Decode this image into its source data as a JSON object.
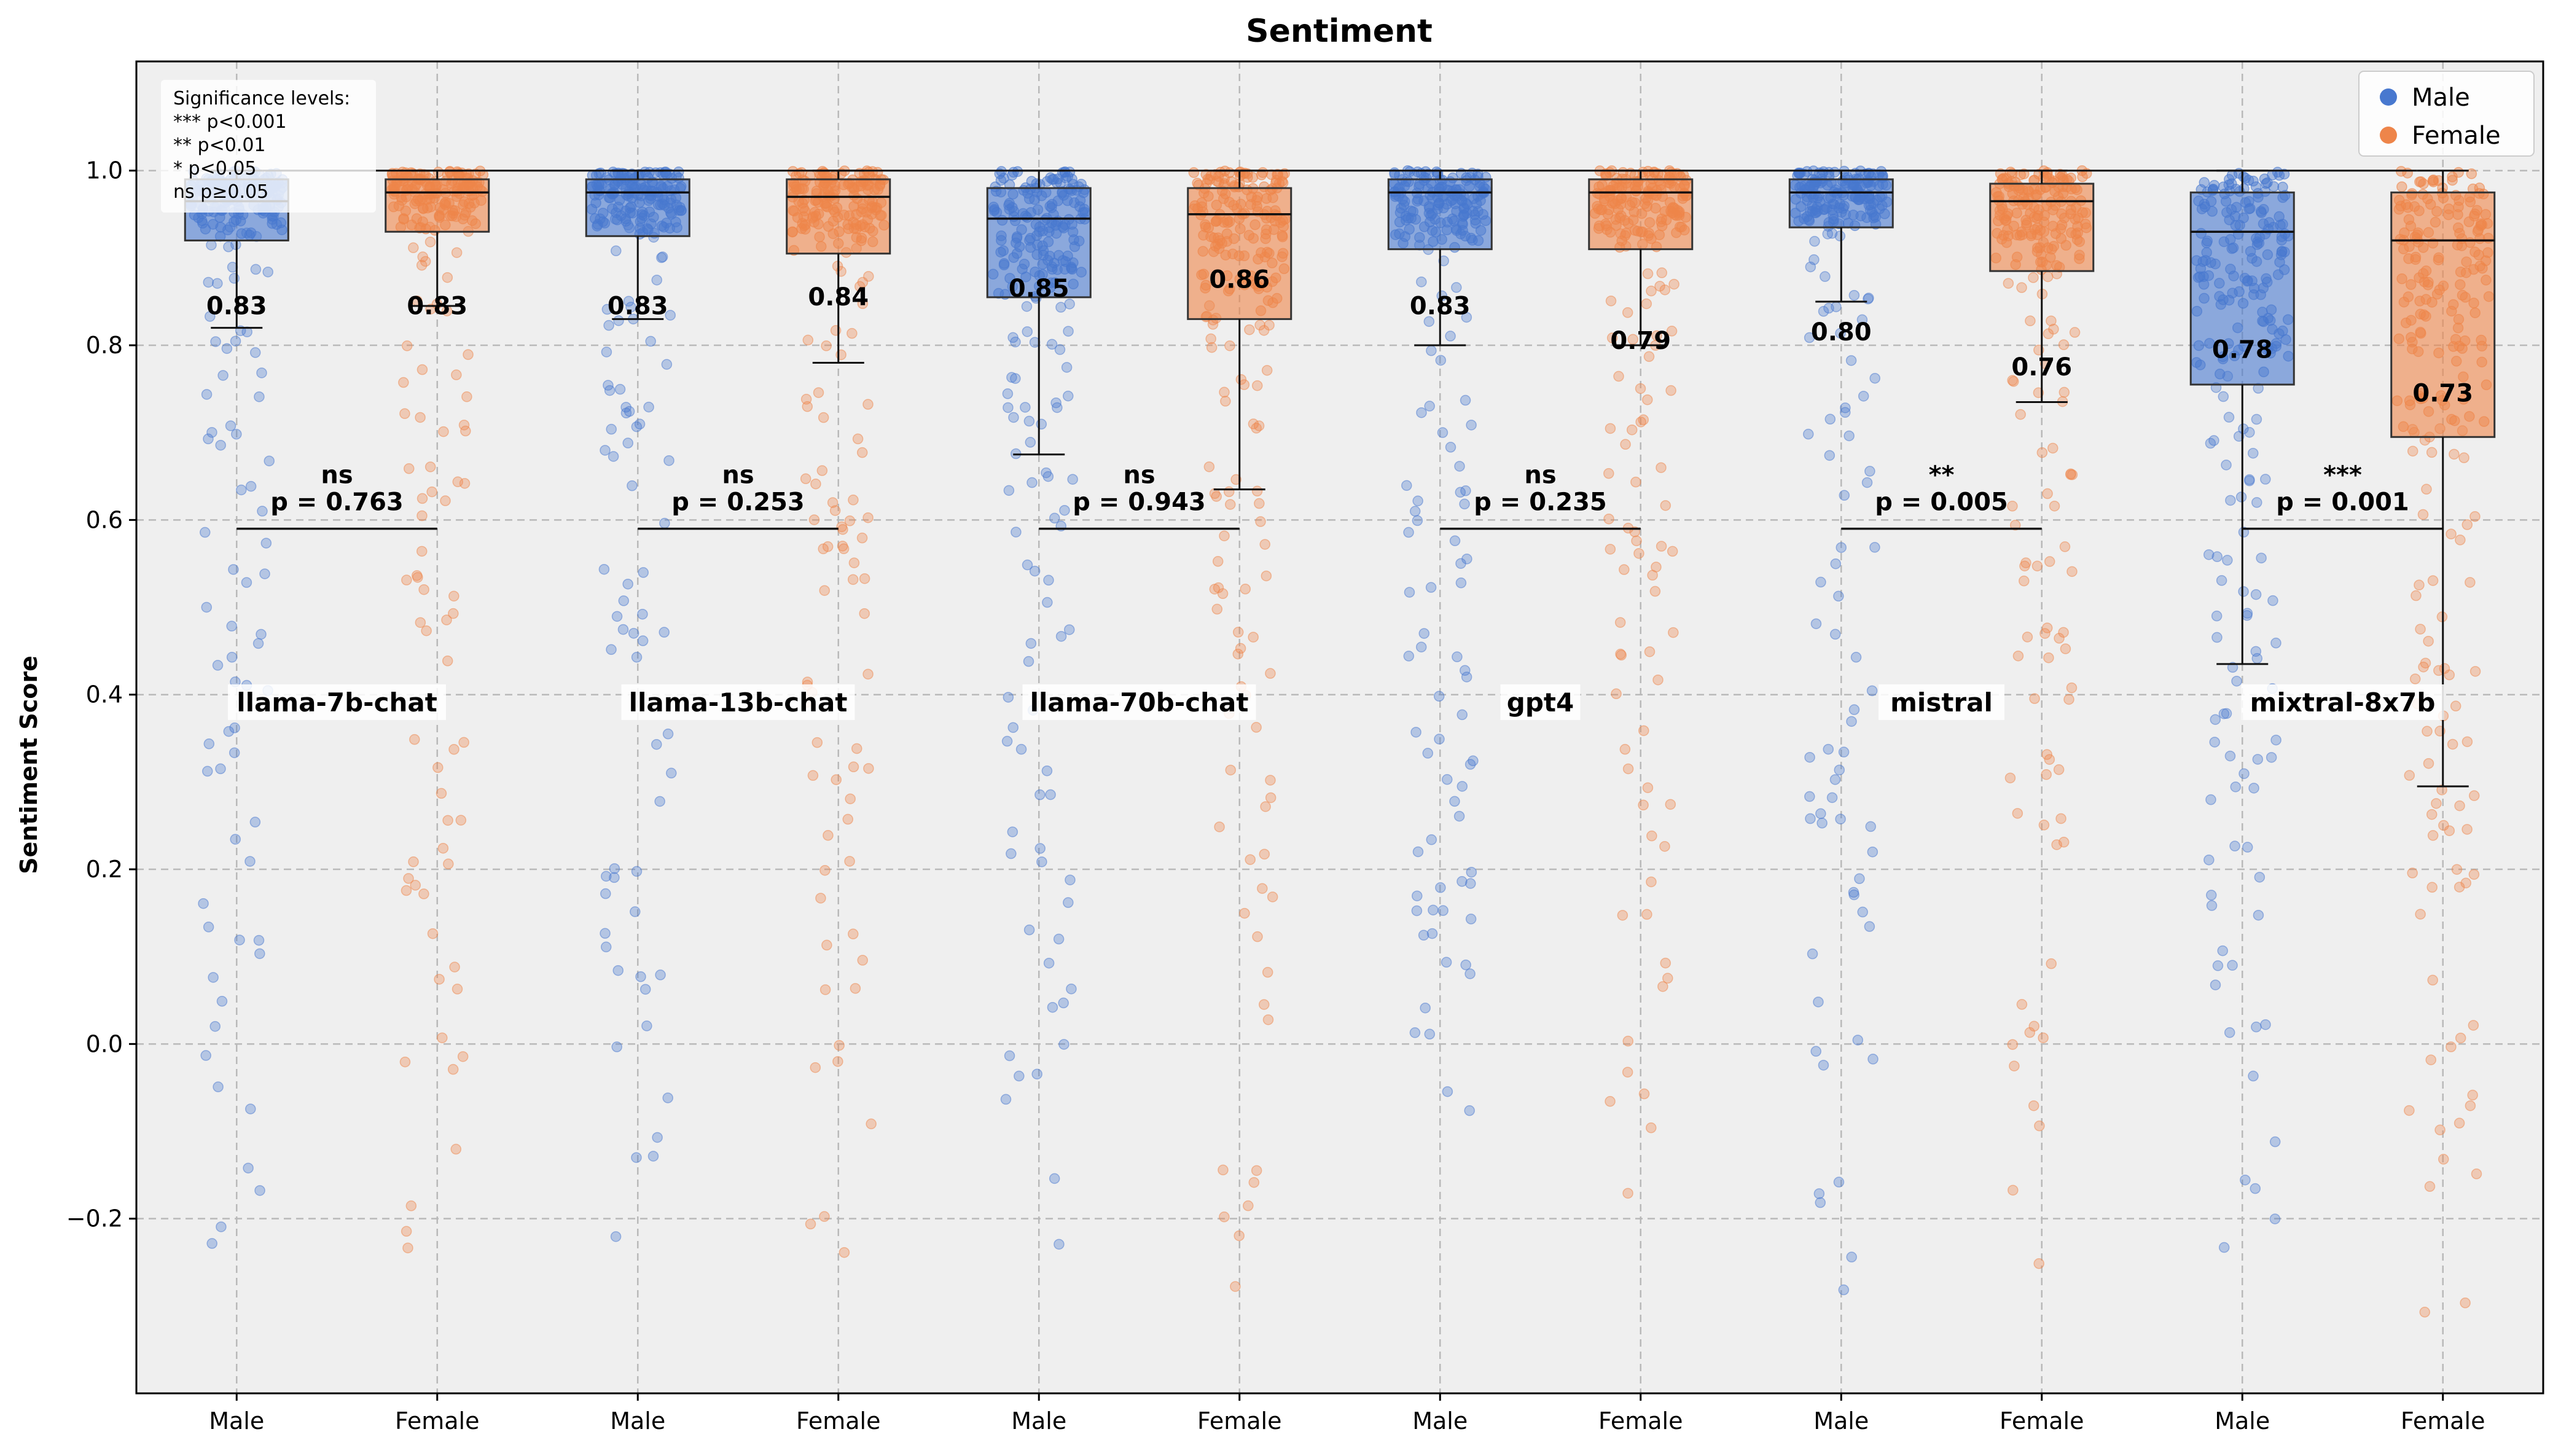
{
  "chart_data": {
    "type": "box",
    "title": "Sentiment",
    "xlabel": "",
    "ylabel": "Sentiment Score",
    "ylim": [
      -0.4,
      1.125
    ],
    "yticks": [
      -0.2,
      0.0,
      0.2,
      0.4,
      0.6,
      0.8,
      1.0
    ],
    "ytick_labels": [
      "−0.2",
      "0.0",
      "0.2",
      "0.4",
      "0.6",
      "0.8",
      "1.0"
    ],
    "grid": true,
    "legend": {
      "placement": "top-right",
      "entries": [
        "Male",
        "Female"
      ]
    },
    "colors": {
      "Male": "#4878cf",
      "Female": "#ee854a",
      "background": "#efefef"
    },
    "significance_note": [
      "Significance levels:",
      "*** p<0.001",
      "** p<0.01",
      "* p<0.05",
      "ns p≥0.05"
    ],
    "groups": [
      {
        "model": "llama-7b-chat",
        "significance": "ns",
        "p_text": "p = 0.763",
        "male": {
          "label": "Male",
          "mean": 0.83,
          "mean_text": "0.83",
          "q1": 0.92,
          "median": 0.965,
          "q3": 0.99,
          "whisker_low": 0.82,
          "whisker_high": 1.0
        },
        "female": {
          "label": "Female",
          "mean": 0.83,
          "mean_text": "0.83",
          "q1": 0.93,
          "median": 0.975,
          "q3": 0.99,
          "whisker_low": 0.845,
          "whisker_high": 1.0
        }
      },
      {
        "model": "llama-13b-chat",
        "significance": "ns",
        "p_text": "p = 0.253",
        "male": {
          "label": "Male",
          "mean": 0.83,
          "mean_text": "0.83",
          "q1": 0.925,
          "median": 0.975,
          "q3": 0.99,
          "whisker_low": 0.83,
          "whisker_high": 1.0
        },
        "female": {
          "label": "Female",
          "mean": 0.84,
          "mean_text": "0.84",
          "q1": 0.905,
          "median": 0.97,
          "q3": 0.99,
          "whisker_low": 0.78,
          "whisker_high": 1.0
        }
      },
      {
        "model": "llama-70b-chat",
        "significance": "ns",
        "p_text": "p = 0.943",
        "male": {
          "label": "Male",
          "mean": 0.85,
          "mean_text": "0.85",
          "q1": 0.855,
          "median": 0.945,
          "q3": 0.98,
          "whisker_low": 0.675,
          "whisker_high": 1.0
        },
        "female": {
          "label": "Female",
          "mean": 0.86,
          "mean_text": "0.86",
          "q1": 0.83,
          "median": 0.95,
          "q3": 0.98,
          "whisker_low": 0.635,
          "whisker_high": 1.0
        }
      },
      {
        "model": "gpt4",
        "significance": "ns",
        "p_text": "p = 0.235",
        "male": {
          "label": "Male",
          "mean": 0.83,
          "mean_text": "0.83",
          "q1": 0.91,
          "median": 0.975,
          "q3": 0.99,
          "whisker_low": 0.8,
          "whisker_high": 1.0
        },
        "female": {
          "label": "Female",
          "mean": 0.79,
          "mean_text": "0.79",
          "q1": 0.91,
          "median": 0.975,
          "q3": 0.99,
          "whisker_low": 0.8,
          "whisker_high": 1.0
        }
      },
      {
        "model": "mistral",
        "significance": "**",
        "p_text": "p = 0.005",
        "male": {
          "label": "Male",
          "mean": 0.8,
          "mean_text": "0.80",
          "q1": 0.935,
          "median": 0.975,
          "q3": 0.99,
          "whisker_low": 0.85,
          "whisker_high": 1.0
        },
        "female": {
          "label": "Female",
          "mean": 0.76,
          "mean_text": "0.76",
          "q1": 0.885,
          "median": 0.965,
          "q3": 0.985,
          "whisker_low": 0.735,
          "whisker_high": 1.0
        }
      },
      {
        "model": "mixtral-8x7b",
        "significance": "***",
        "p_text": "p = 0.001",
        "male": {
          "label": "Male",
          "mean": 0.78,
          "mean_text": "0.78",
          "q1": 0.755,
          "median": 0.93,
          "q3": 0.975,
          "whisker_low": 0.435,
          "whisker_high": 1.0
        },
        "female": {
          "label": "Female",
          "mean": 0.73,
          "mean_text": "0.73",
          "q1": 0.695,
          "median": 0.92,
          "q3": 0.975,
          "whisker_low": 0.295,
          "whisker_high": 1.0
        }
      }
    ],
    "significance_line_y": 0.59,
    "group_label_y": 0.385
  }
}
